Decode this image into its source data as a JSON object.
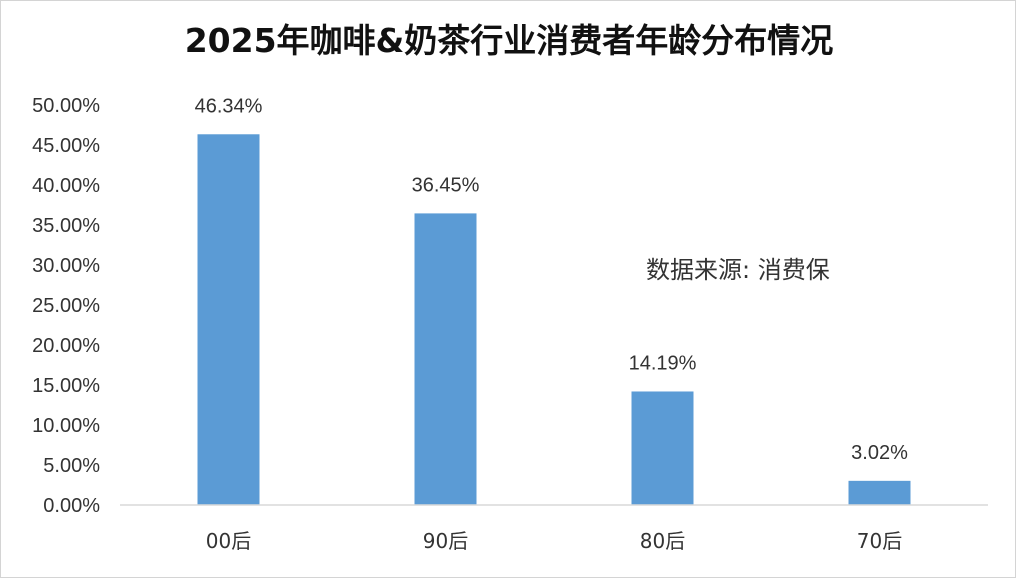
{
  "chart_data": {
    "type": "bar",
    "title": "2025年咖啡&奶茶行业消费者年龄分布情况",
    "categories": [
      "00后",
      "90后",
      "80后",
      "70后"
    ],
    "values": [
      46.34,
      36.45,
      14.19,
      3.02
    ],
    "data_labels": [
      "46.34%",
      "36.45%",
      "14.19%",
      "3.02%"
    ],
    "ylim": [
      0,
      50
    ],
    "y_ticks": [
      0,
      5,
      10,
      15,
      20,
      25,
      30,
      35,
      40,
      45,
      50
    ],
    "y_tick_labels": [
      "0.00%",
      "5.00%",
      "10.00%",
      "15.00%",
      "20.00%",
      "25.00%",
      "30.00%",
      "35.00%",
      "40.00%",
      "45.00%",
      "50.00%"
    ],
    "xlabel": "",
    "ylabel": "",
    "grid": false,
    "legend": "none",
    "bar_color": "#5b9bd5",
    "annotation": "数据来源:  消费保"
  }
}
